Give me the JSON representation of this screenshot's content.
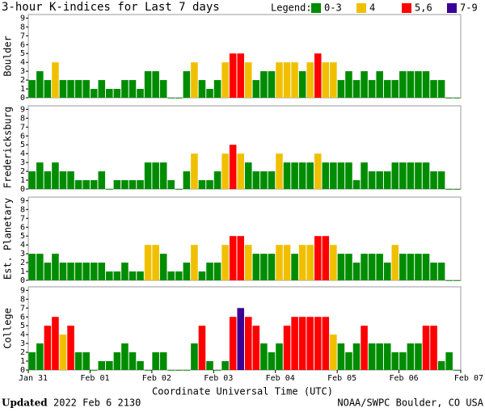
{
  "title": "3-hour K-indices for Last 7 days",
  "legend": {
    "title": "Legend:",
    "items": [
      {
        "label": "0-3",
        "color": "#008c00"
      },
      {
        "label": "4",
        "color": "#f0c000"
      },
      {
        "label": "5,6",
        "color": "#ff0000"
      },
      {
        "label": "7-9",
        "color": "#3c0096"
      }
    ]
  },
  "x_axis": {
    "label": "Coordinate Universal Time (UTC)",
    "ticks": [
      "Jan 31",
      "Feb 01",
      "Feb 02",
      "Feb 03",
      "Feb 04",
      "Feb 05",
      "Feb 06",
      "Feb 07"
    ]
  },
  "chart_data": [
    {
      "type": "bar",
      "ylabel": "Boulder",
      "ylim": [
        0,
        9.4
      ],
      "yticks": [
        0,
        1,
        2,
        3,
        4,
        5,
        6,
        7,
        8,
        9
      ],
      "values": [
        2,
        3,
        2,
        4,
        2,
        2,
        2,
        2,
        1,
        2,
        1,
        1,
        2,
        2,
        1,
        3,
        3,
        2,
        0,
        0,
        3,
        4,
        2,
        1,
        2,
        4,
        5,
        5,
        4,
        2,
        3,
        3,
        4,
        4,
        4,
        3,
        4,
        5,
        4,
        4,
        2,
        3,
        2,
        3,
        2,
        3,
        2,
        2,
        3,
        3,
        3,
        3,
        2,
        2,
        0,
        0
      ]
    },
    {
      "type": "bar",
      "ylabel": "Fredericksburg",
      "ylim": [
        0,
        9.4
      ],
      "yticks": [
        0,
        1,
        2,
        3,
        4,
        5,
        6,
        7,
        8,
        9
      ],
      "values": [
        2,
        3,
        2,
        3,
        2,
        2,
        1,
        1,
        1,
        2,
        0,
        1,
        1,
        1,
        1,
        3,
        3,
        3,
        1,
        0,
        2,
        4,
        1,
        1,
        2,
        4,
        5,
        4,
        3,
        2,
        2,
        2,
        4,
        3,
        3,
        3,
        3,
        4,
        3,
        3,
        3,
        3,
        1,
        3,
        2,
        2,
        2,
        3,
        3,
        3,
        3,
        3,
        2,
        2,
        0,
        0
      ]
    },
    {
      "type": "bar",
      "ylabel": "Est. Planetary",
      "ylim": [
        0,
        9.4
      ],
      "yticks": [
        0,
        1,
        2,
        3,
        4,
        5,
        6,
        7,
        8,
        9
      ],
      "values": [
        3,
        3,
        2,
        3,
        2,
        2,
        2,
        2,
        2,
        2,
        1,
        1,
        2,
        1,
        1,
        4,
        4,
        3,
        1,
        1,
        2,
        4,
        1,
        2,
        2,
        4,
        5,
        5,
        4,
        3,
        3,
        3,
        4,
        4,
        3,
        4,
        4,
        5,
        5,
        4,
        3,
        3,
        2,
        3,
        3,
        3,
        2,
        4,
        3,
        3,
        3,
        3,
        2,
        2,
        0,
        0
      ]
    },
    {
      "type": "bar",
      "ylabel": "College",
      "ylim": [
        0,
        9.4
      ],
      "yticks": [
        0,
        1,
        2,
        3,
        4,
        5,
        6,
        7,
        8,
        9
      ],
      "values": [
        2,
        3,
        5,
        6,
        4,
        5,
        2,
        2,
        0,
        1,
        1,
        2,
        3,
        2,
        1,
        0,
        2,
        2,
        0,
        0,
        0,
        3,
        5,
        1,
        0,
        1,
        6,
        7,
        6,
        5,
        3,
        2,
        3,
        5,
        6,
        6,
        6,
        6,
        6,
        4,
        3,
        2,
        3,
        5,
        3,
        3,
        3,
        2,
        2,
        3,
        3,
        5,
        5,
        1,
        2,
        0
      ]
    }
  ],
  "footer": {
    "updated_label": "Updated",
    "updated": "2022 Feb  6 2130",
    "source": "NOAA/SWPC Boulder, CO USA"
  }
}
